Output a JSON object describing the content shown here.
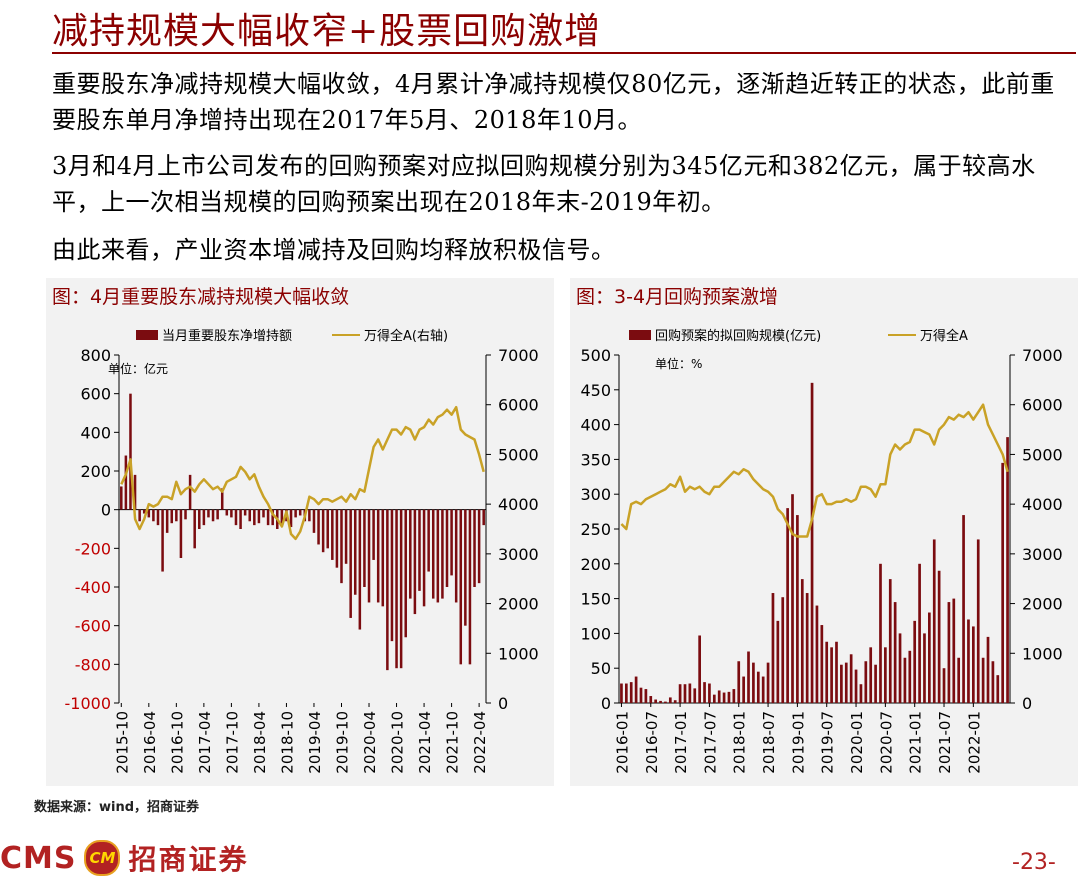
{
  "title": "减持规模大幅收窄+股票回购激增",
  "paragraphs": [
    "重要股东净减持规模大幅收敛，4月累计净减持规模仅80亿元，逐渐趋近转正的状态，此前重要股东单月净增持出现在2017年5月、2018年10月。",
    "3月和4月上市公司发布的回购预案对应拟回购规模分别为345亿元和382亿元，属于较高水平，上一次相当规模的回购预案出现在2018年末-2019年初。",
    "由此来看，产业资本增减持及回购均释放积极信号。"
  ],
  "source": "数据来源：wind，招商证券",
  "logo": {
    "cms": "CMS",
    "badge": "CM",
    "name": "招商证券"
  },
  "page_number": "-23-",
  "colors": {
    "accent": "#8b0000",
    "bar": "#7b0c10",
    "line": "#c9a227",
    "panel_bg": "#f2f2f2"
  },
  "chart_data": [
    {
      "type": "bar+line",
      "title": "图：4月重要股东减持规模大幅收敛",
      "unit_note": "单位：亿元",
      "legend": {
        "bar": "当月重要股东净增持额",
        "line": "万得全A(右轴)"
      },
      "ylim_left": [
        -1000,
        800
      ],
      "yticks_left": [
        -1000,
        -800,
        -600,
        -400,
        -200,
        0,
        200,
        400,
        600,
        800
      ],
      "ylim_right": [
        0,
        7000
      ],
      "yticks_right": [
        0,
        1000,
        2000,
        3000,
        4000,
        5000,
        6000,
        7000
      ],
      "xlabels": [
        "2015-10",
        "2016-04",
        "2016-10",
        "2017-04",
        "2017-10",
        "2018-04",
        "2018-10",
        "2019-04",
        "2019-10",
        "2020-04",
        "2020-10",
        "2021-04",
        "2021-10",
        "2022-04"
      ],
      "x_start": "2015-10",
      "bars": [
        120,
        280,
        600,
        180,
        -60,
        -20,
        -40,
        -60,
        -80,
        -320,
        -120,
        -70,
        -60,
        -250,
        -50,
        180,
        -200,
        -100,
        -80,
        -40,
        -60,
        -50,
        110,
        -30,
        -40,
        -80,
        -100,
        -30,
        -60,
        -80,
        -70,
        -40,
        -80,
        -80,
        -100,
        -80,
        -60,
        -90,
        -40,
        -30,
        -60,
        -60,
        -120,
        -180,
        -220,
        -200,
        -260,
        -300,
        -380,
        -280,
        -560,
        -440,
        -620,
        -400,
        -480,
        -260,
        -480,
        -500,
        -830,
        -680,
        -820,
        -820,
        -660,
        -460,
        -540,
        -420,
        -500,
        -320,
        -460,
        -480,
        -460,
        -400,
        -340,
        -480,
        -800,
        -600,
        -800,
        -400,
        -380,
        -80
      ],
      "line": [
        4400,
        4600,
        4900,
        3700,
        3500,
        3700,
        4000,
        3950,
        4000,
        4150,
        4150,
        4100,
        4450,
        4200,
        4300,
        4350,
        4250,
        4400,
        4500,
        4400,
        4300,
        4350,
        4250,
        4450,
        4500,
        4550,
        4750,
        4650,
        4500,
        4600,
        4350,
        4150,
        4000,
        3800,
        3700,
        3550,
        3850,
        3400,
        3300,
        3450,
        3750,
        4150,
        4100,
        4000,
        4100,
        4100,
        4050,
        4100,
        4150,
        4050,
        4200,
        4100,
        4300,
        4250,
        4700,
        5150,
        5300,
        5100,
        5300,
        5500,
        5500,
        5400,
        5550,
        5500,
        5300,
        5500,
        5550,
        5700,
        5600,
        5750,
        5800,
        5900,
        5800,
        5950,
        5500,
        5400,
        5350,
        5300,
        5000,
        4650
      ]
    },
    {
      "type": "bar+line",
      "title": "图：3-4月回购预案激增",
      "unit_note": "单位：%",
      "legend": {
        "bar": "回购预案的拟回购规模(亿元)",
        "line": "万得全A"
      },
      "ylim_left": [
        0,
        500
      ],
      "yticks_left": [
        0,
        50,
        100,
        150,
        200,
        250,
        300,
        350,
        400,
        450,
        500
      ],
      "ylim_right": [
        0,
        7000
      ],
      "yticks_right": [
        0,
        1000,
        2000,
        3000,
        4000,
        5000,
        6000,
        7000
      ],
      "xlabels": [
        "2016-01",
        "2016-07",
        "2017-01",
        "2017-07",
        "2018-01",
        "2018-07",
        "2019-01",
        "2019-07",
        "2020-01",
        "2020-07",
        "2021-01",
        "2021-07",
        "2022-01"
      ],
      "x_start": "2016-01",
      "bars": [
        28,
        28,
        30,
        38,
        22,
        20,
        10,
        5,
        3,
        2,
        8,
        4,
        27,
        27,
        28,
        21,
        97,
        30,
        28,
        12,
        18,
        15,
        16,
        20,
        60,
        38,
        74,
        58,
        45,
        38,
        58,
        158,
        118,
        152,
        280,
        300,
        270,
        178,
        158,
        460,
        140,
        112,
        88,
        80,
        88,
        55,
        58,
        70,
        48,
        27,
        60,
        80,
        55,
        200,
        80,
        178,
        145,
        100,
        65,
        75,
        118,
        200,
        100,
        130,
        235,
        190,
        50,
        145,
        150,
        65,
        270,
        120,
        110,
        235,
        65,
        95,
        60,
        40,
        345,
        382
      ],
      "line": [
        3600,
        3500,
        4000,
        4050,
        4000,
        4100,
        4150,
        4200,
        4250,
        4300,
        4400,
        4350,
        4550,
        4250,
        4350,
        4300,
        4350,
        4250,
        4200,
        4350,
        4350,
        4450,
        4550,
        4650,
        4600,
        4700,
        4650,
        4500,
        4400,
        4300,
        4250,
        4150,
        3900,
        3800,
        3600,
        3400,
        3350,
        3350,
        3350,
        3700,
        4150,
        4200,
        4000,
        4000,
        4050,
        4050,
        4100,
        4050,
        4100,
        4350,
        4350,
        4300,
        4150,
        4400,
        4400,
        5000,
        5200,
        5100,
        5200,
        5250,
        5500,
        5500,
        5450,
        5400,
        5200,
        5500,
        5600,
        5750,
        5700,
        5800,
        5750,
        5850,
        5700,
        5850,
        6000,
        5600,
        5400,
        5200,
        5000,
        4650
      ]
    }
  ]
}
